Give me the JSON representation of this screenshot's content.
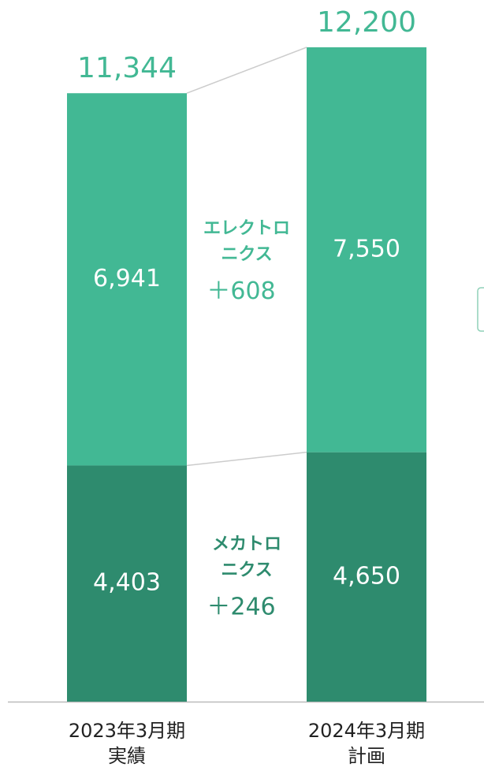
{
  "chart_data": {
    "type": "stacked_bar",
    "categories": [
      [
        "2023年3月期",
        "実績"
      ],
      [
        "2024年3月期",
        "計画"
      ]
    ],
    "series": [
      {
        "name": [
          "メカトロ",
          "ニクス"
        ],
        "color": "#2e8b6e",
        "values": [
          4403,
          4650
        ],
        "value_labels": [
          "4,403",
          "4,650"
        ],
        "change": 246,
        "change_label": "＋246"
      },
      {
        "name": [
          "エレクトロ",
          "ニクス"
        ],
        "color": "#42b894",
        "values": [
          6941,
          7550
        ],
        "value_labels": [
          "6,941",
          "7,550"
        ],
        "change": 608,
        "change_label": "＋608"
      }
    ],
    "totals": [
      11344,
      12200
    ],
    "total_labels": [
      "11,344",
      "12,200"
    ]
  }
}
